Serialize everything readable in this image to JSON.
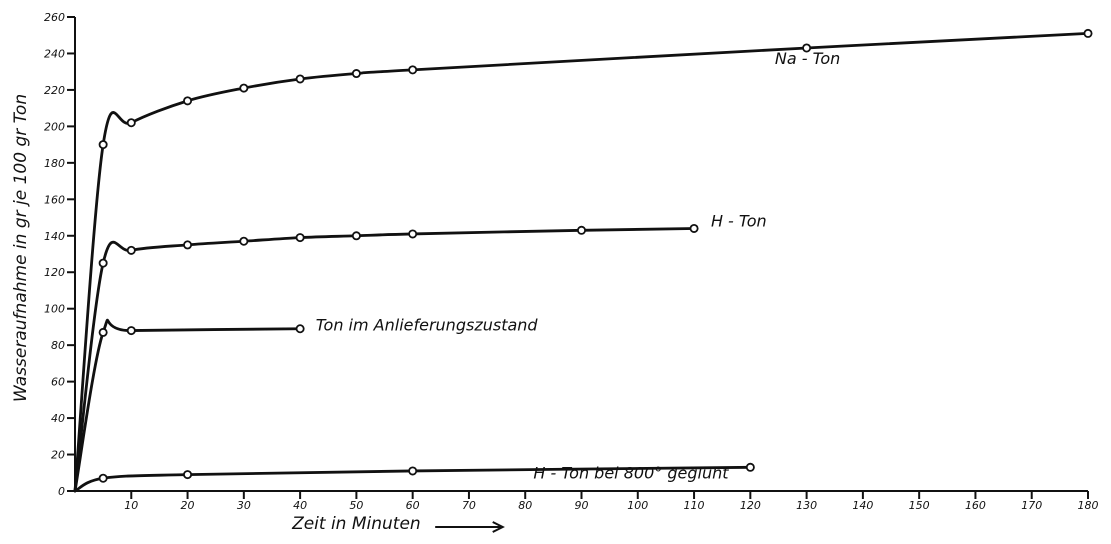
{
  "chart_data": {
    "type": "line",
    "x_unit": "Minuten",
    "y_unit": "gr",
    "xlabel": "Zeit in Minuten",
    "ylabel": "Wasseraufnahme in gr je 100 gr Ton",
    "xlim": [
      0,
      180
    ],
    "ylim": [
      0,
      260
    ],
    "x_ticks": [
      10,
      20,
      30,
      40,
      50,
      60,
      70,
      80,
      90,
      100,
      110,
      120,
      130,
      140,
      150,
      160,
      170,
      180
    ],
    "y_ticks": [
      0,
      20,
      40,
      60,
      80,
      100,
      120,
      140,
      160,
      180,
      200,
      220,
      240,
      260
    ],
    "grid": false,
    "series": [
      {
        "name": "Na - Ton",
        "x": [
          0,
          5,
          10,
          20,
          30,
          40,
          50,
          60,
          130,
          180
        ],
        "y": [
          0,
          190,
          202,
          214,
          221,
          226,
          229,
          231,
          243,
          251
        ]
      },
      {
        "name": "H - Ton",
        "x": [
          0,
          5,
          10,
          20,
          30,
          40,
          50,
          60,
          90,
          110
        ],
        "y": [
          0,
          125,
          132,
          135,
          137,
          139,
          140,
          141,
          143,
          144
        ]
      },
      {
        "name": "Ton im Anlieferungszustand",
        "x": [
          0,
          5,
          10,
          40
        ],
        "y": [
          0,
          87,
          88,
          89
        ]
      },
      {
        "name": "H - Ton bei 800° geglüht",
        "x": [
          0,
          5,
          20,
          60,
          120
        ],
        "y": [
          0,
          7,
          9,
          11,
          13
        ]
      }
    ]
  }
}
